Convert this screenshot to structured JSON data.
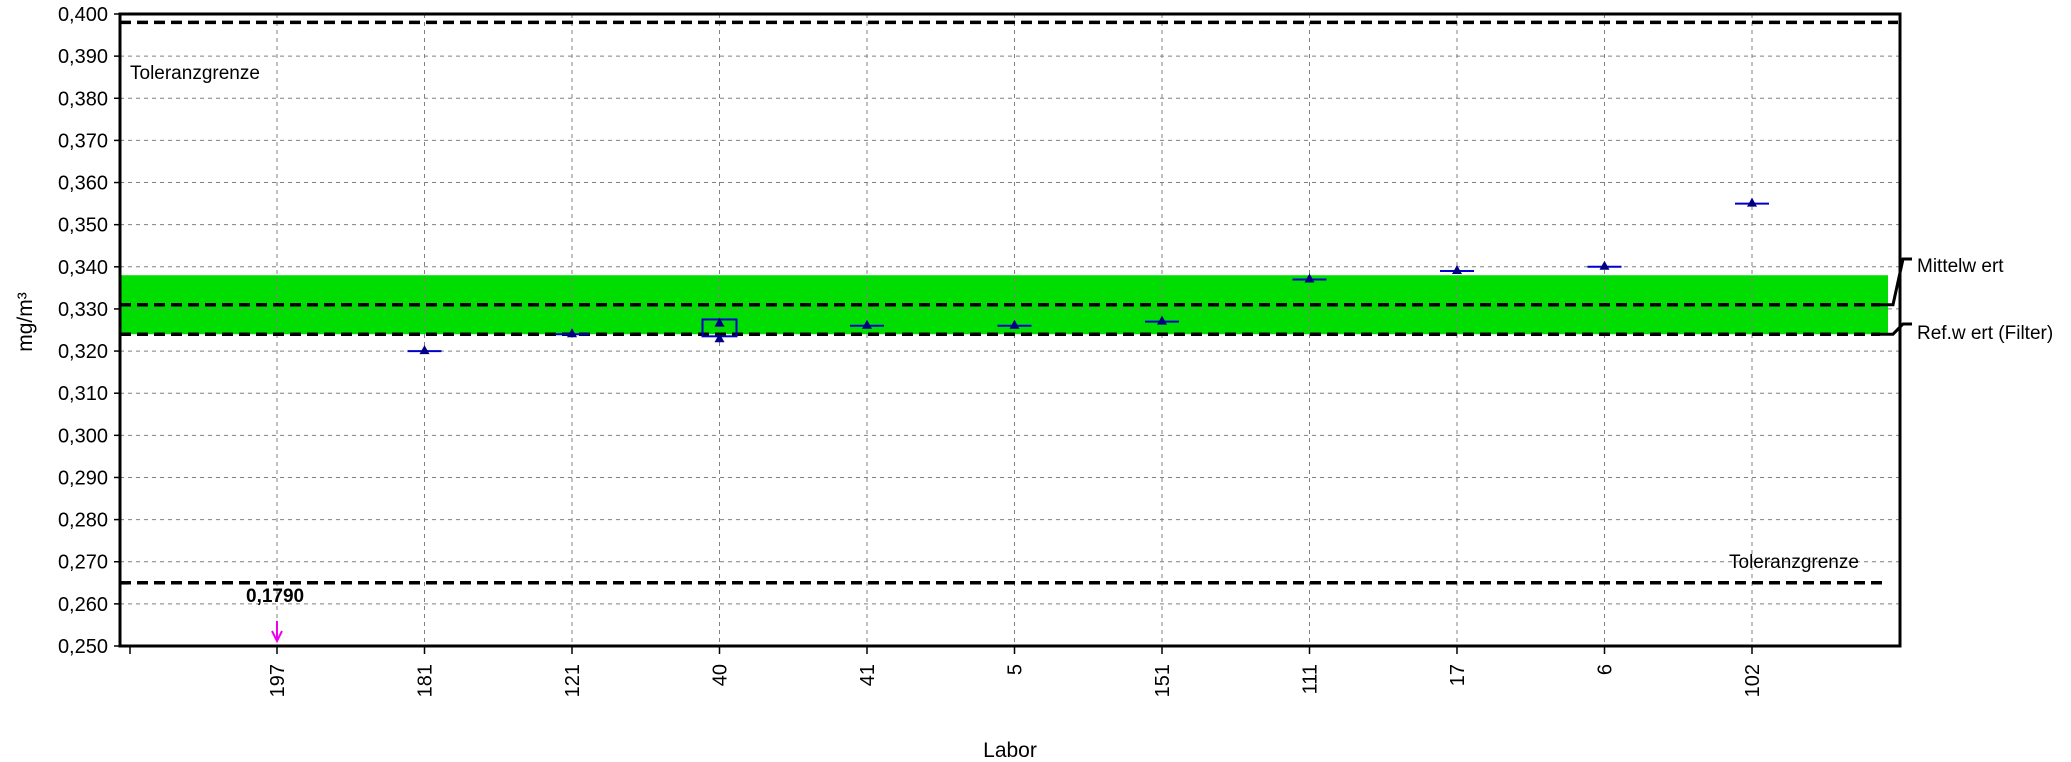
{
  "chart_data": {
    "type": "scatter",
    "xlabel": "Labor",
    "ylabel": "mg/m³",
    "ylim": [
      0.25,
      0.4
    ],
    "y_ticks": [
      "0,250",
      "0,260",
      "0,270",
      "0,280",
      "0,290",
      "0,300",
      "0,310",
      "0,320",
      "0,330",
      "0,340",
      "0,350",
      "0,360",
      "0,370",
      "0,380",
      "0,390",
      "0,400"
    ],
    "categories": [
      "197",
      "181",
      "121",
      "40",
      "41",
      "5",
      "151",
      "111",
      "17",
      "6",
      "102"
    ],
    "grid": true,
    "points": [
      {
        "labor": "181",
        "value": 0.32
      },
      {
        "labor": "121",
        "value": 0.324
      },
      {
        "labor": "40",
        "value": 0.3265,
        "second_value": 0.3228,
        "range": [
          0.3235,
          0.3275
        ]
      },
      {
        "labor": "41",
        "value": 0.326
      },
      {
        "labor": "5",
        "value": 0.326
      },
      {
        "labor": "151",
        "value": 0.327
      },
      {
        "labor": "111",
        "value": 0.337
      },
      {
        "labor": "17",
        "value": 0.339
      },
      {
        "labor": "6",
        "value": 0.34
      },
      {
        "labor": "102",
        "value": 0.355
      }
    ],
    "out_of_range": {
      "labor": "197",
      "value": 0.179,
      "label": "0,1790"
    },
    "reference_lines": {
      "upper_tolerance": {
        "value": 0.398,
        "label": "Toleranzgrenze"
      },
      "lower_tolerance": {
        "value": 0.265,
        "label": "Toleranzgrenze"
      },
      "mean": {
        "value": 0.331,
        "label": "Mittelw ert"
      },
      "reference": {
        "value": 0.324,
        "label": "Ref.w ert (Filter)"
      }
    },
    "band": {
      "low": 0.324,
      "high": 0.338,
      "color": "#00dd00"
    },
    "colors": {
      "marker": "#000080",
      "err_bar": "#0000cc",
      "arrow": "#ee00ee",
      "grid": "#808080"
    }
  }
}
